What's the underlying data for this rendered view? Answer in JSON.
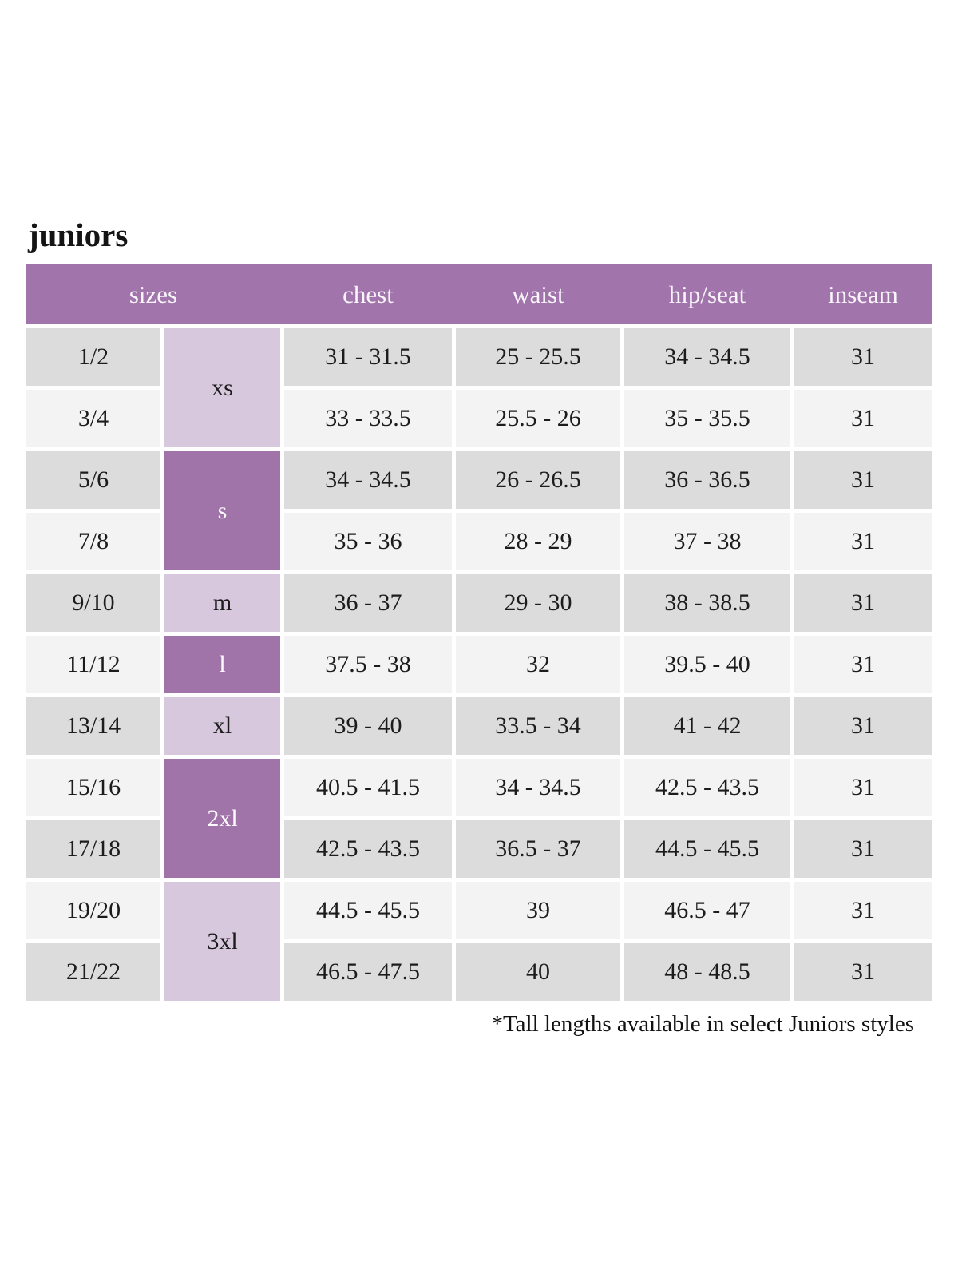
{
  "title": "juniors",
  "footnote": "*Tall lengths available in select Juniors styles",
  "colors": {
    "header_bg": "#a175ab",
    "header_text": "#f9f5fa",
    "group_dark_bg": "#a073a9",
    "group_light_bg": "#d8c8de",
    "row_dark_bg": "#dcdcdc",
    "row_light_bg": "#f3f3f3",
    "body_text": "#1c1c1c",
    "background": "#ffffff"
  },
  "chart_data": {
    "type": "table",
    "title": "juniors",
    "columns": [
      "sizes",
      "chest",
      "waist",
      "hip/seat",
      "inseam"
    ],
    "size_groups": [
      {
        "label": "xs",
        "span": 2,
        "variant": "light"
      },
      {
        "label": "s",
        "span": 2,
        "variant": "dark"
      },
      {
        "label": "m",
        "span": 1,
        "variant": "light"
      },
      {
        "label": "l",
        "span": 1,
        "variant": "dark"
      },
      {
        "label": "xl",
        "span": 1,
        "variant": "light"
      },
      {
        "label": "2xl",
        "span": 2,
        "variant": "dark"
      },
      {
        "label": "3xl",
        "span": 2,
        "variant": "light"
      }
    ],
    "rows": [
      {
        "size": "1/2",
        "group": "xs",
        "chest": "31 - 31.5",
        "waist": "25 - 25.5",
        "hip_seat": "34 - 34.5",
        "inseam": "31"
      },
      {
        "size": "3/4",
        "group": "xs",
        "chest": "33 - 33.5",
        "waist": "25.5 - 26",
        "hip_seat": "35 - 35.5",
        "inseam": "31"
      },
      {
        "size": "5/6",
        "group": "s",
        "chest": "34 - 34.5",
        "waist": "26 - 26.5",
        "hip_seat": "36 - 36.5",
        "inseam": "31"
      },
      {
        "size": "7/8",
        "group": "s",
        "chest": "35 - 36",
        "waist": "28 - 29",
        "hip_seat": "37 - 38",
        "inseam": "31"
      },
      {
        "size": "9/10",
        "group": "m",
        "chest": "36 - 37",
        "waist": "29 - 30",
        "hip_seat": "38 - 38.5",
        "inseam": "31"
      },
      {
        "size": "11/12",
        "group": "l",
        "chest": "37.5 - 38",
        "waist": "32",
        "hip_seat": "39.5 - 40",
        "inseam": "31"
      },
      {
        "size": "13/14",
        "group": "xl",
        "chest": "39 - 40",
        "waist": "33.5 - 34",
        "hip_seat": "41 - 42",
        "inseam": "31"
      },
      {
        "size": "15/16",
        "group": "2xl",
        "chest": "40.5 - 41.5",
        "waist": "34 - 34.5",
        "hip_seat": "42.5 - 43.5",
        "inseam": "31"
      },
      {
        "size": "17/18",
        "group": "2xl",
        "chest": "42.5 - 43.5",
        "waist": "36.5 - 37",
        "hip_seat": "44.5 - 45.5",
        "inseam": "31"
      },
      {
        "size": "19/20",
        "group": "3xl",
        "chest": "44.5 - 45.5",
        "waist": "39",
        "hip_seat": "46.5 - 47",
        "inseam": "31"
      },
      {
        "size": "21/22",
        "group": "3xl",
        "chest": "46.5 - 47.5",
        "waist": "40",
        "hip_seat": "48 - 48.5",
        "inseam": "31"
      }
    ]
  }
}
